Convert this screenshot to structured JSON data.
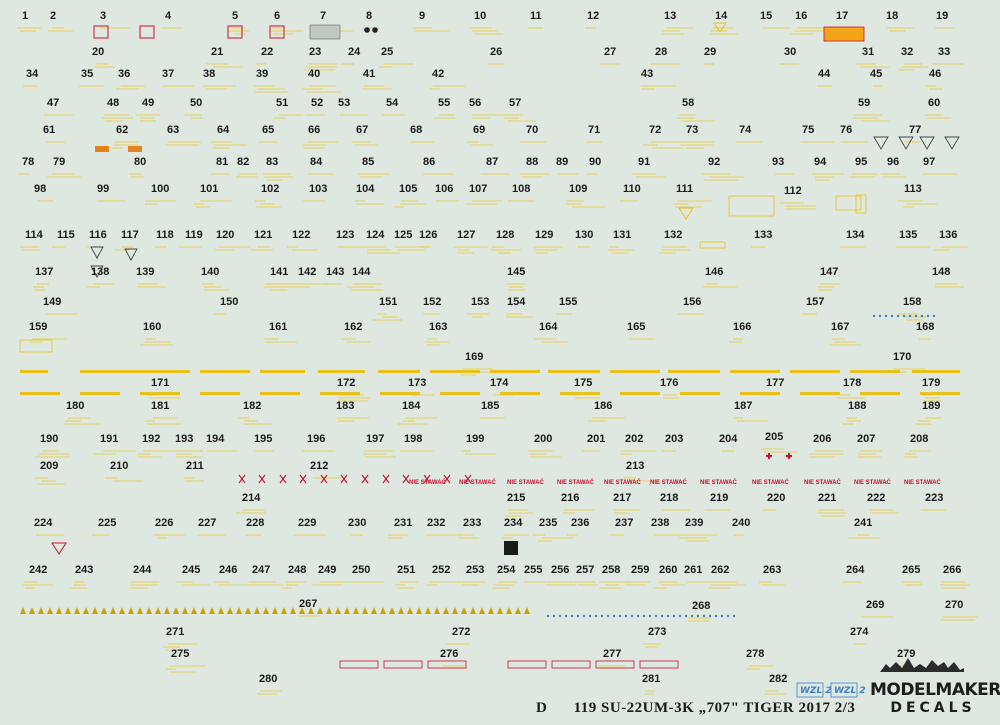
{
  "sheet": {
    "letter": "D",
    "title": "119 SU-22UM-3K „707\" TIGER 2017 2/3",
    "brand_line1": "MODELMAKER",
    "brand_line2": "DECALS",
    "badge_a": "WZL 2",
    "badge_b": "WZL 2",
    "red_stencil_text": "NIE STAWAĆ",
    "colors": {
      "background": "#dfe8e0",
      "yellow": "#e8c21a",
      "red": "#c8102e",
      "number_text": "#1a1a1a"
    }
  },
  "labels": [
    {
      "t": "1"
    },
    {
      "t": "2"
    },
    {
      "t": "3"
    },
    {
      "t": "4"
    },
    {
      "t": "5"
    },
    {
      "t": "6"
    },
    {
      "t": "7"
    },
    {
      "t": "8"
    },
    {
      "t": "9"
    },
    {
      "t": "10"
    },
    {
      "t": "11"
    },
    {
      "t": "12"
    },
    {
      "t": "13"
    },
    {
      "t": "14"
    },
    {
      "t": "15"
    },
    {
      "t": "16"
    },
    {
      "t": "17"
    },
    {
      "t": "18"
    },
    {
      "t": "19"
    },
    {
      "t": "20"
    },
    {
      "t": "21"
    },
    {
      "t": "22"
    },
    {
      "t": "23"
    },
    {
      "t": "24"
    },
    {
      "t": "25"
    },
    {
      "t": "26"
    },
    {
      "t": "27"
    },
    {
      "t": "28"
    },
    {
      "t": "29"
    },
    {
      "t": "30"
    },
    {
      "t": "31"
    },
    {
      "t": "32"
    },
    {
      "t": "33"
    },
    {
      "t": "34"
    },
    {
      "t": "35"
    },
    {
      "t": "36"
    },
    {
      "t": "37"
    },
    {
      "t": "38"
    },
    {
      "t": "39"
    },
    {
      "t": "40"
    },
    {
      "t": "41"
    },
    {
      "t": "42"
    },
    {
      "t": "43"
    },
    {
      "t": "44"
    },
    {
      "t": "45"
    },
    {
      "t": "46"
    },
    {
      "t": "47"
    },
    {
      "t": "48"
    },
    {
      "t": "49"
    },
    {
      "t": "50"
    },
    {
      "t": "51"
    },
    {
      "t": "52"
    },
    {
      "t": "53"
    },
    {
      "t": "54"
    },
    {
      "t": "55"
    },
    {
      "t": "56"
    },
    {
      "t": "57"
    },
    {
      "t": "58"
    },
    {
      "t": "59"
    },
    {
      "t": "60"
    },
    {
      "t": "61"
    },
    {
      "t": "62"
    },
    {
      "t": "63"
    },
    {
      "t": "64"
    },
    {
      "t": "65"
    },
    {
      "t": "66"
    },
    {
      "t": "67"
    },
    {
      "t": "68"
    },
    {
      "t": "69"
    },
    {
      "t": "70"
    },
    {
      "t": "71"
    },
    {
      "t": "72"
    },
    {
      "t": "73"
    },
    {
      "t": "74"
    },
    {
      "t": "75"
    },
    {
      "t": "76"
    },
    {
      "t": "77"
    },
    {
      "t": "78"
    },
    {
      "t": "79"
    },
    {
      "t": "80"
    },
    {
      "t": "81"
    },
    {
      "t": "82"
    },
    {
      "t": "83"
    },
    {
      "t": "84"
    },
    {
      "t": "85"
    },
    {
      "t": "86"
    },
    {
      "t": "87"
    },
    {
      "t": "88"
    },
    {
      "t": "89"
    },
    {
      "t": "90"
    },
    {
      "t": "91"
    },
    {
      "t": "92"
    },
    {
      "t": "93"
    },
    {
      "t": "94"
    },
    {
      "t": "95"
    },
    {
      "t": "96"
    },
    {
      "t": "97"
    },
    {
      "t": "98"
    },
    {
      "t": "99"
    },
    {
      "t": "100"
    },
    {
      "t": "101"
    },
    {
      "t": "102"
    },
    {
      "t": "103"
    },
    {
      "t": "104"
    },
    {
      "t": "105"
    },
    {
      "t": "106"
    },
    {
      "t": "107"
    },
    {
      "t": "108"
    },
    {
      "t": "109"
    },
    {
      "t": "110"
    },
    {
      "t": "111"
    },
    {
      "t": "112"
    },
    {
      "t": "113"
    },
    {
      "t": "114"
    },
    {
      "t": "115"
    },
    {
      "t": "116"
    },
    {
      "t": "117"
    },
    {
      "t": "118"
    },
    {
      "t": "119"
    },
    {
      "t": "120"
    },
    {
      "t": "121"
    },
    {
      "t": "122"
    },
    {
      "t": "123"
    },
    {
      "t": "124"
    },
    {
      "t": "125"
    },
    {
      "t": "126"
    },
    {
      "t": "127"
    },
    {
      "t": "128"
    },
    {
      "t": "129"
    },
    {
      "t": "130"
    },
    {
      "t": "131"
    },
    {
      "t": "132"
    },
    {
      "t": "133"
    },
    {
      "t": "134"
    },
    {
      "t": "135"
    },
    {
      "t": "136"
    },
    {
      "t": "137"
    },
    {
      "t": "138"
    },
    {
      "t": "139"
    },
    {
      "t": "140"
    },
    {
      "t": "141"
    },
    {
      "t": "142"
    },
    {
      "t": "143"
    },
    {
      "t": "144"
    },
    {
      "t": "145"
    },
    {
      "t": "146"
    },
    {
      "t": "147"
    },
    {
      "t": "148"
    },
    {
      "t": "149"
    },
    {
      "t": "150"
    },
    {
      "t": "151"
    },
    {
      "t": "152"
    },
    {
      "t": "153"
    },
    {
      "t": "154"
    },
    {
      "t": "155"
    },
    {
      "t": "156"
    },
    {
      "t": "157"
    },
    {
      "t": "158"
    },
    {
      "t": "159"
    },
    {
      "t": "160"
    },
    {
      "t": "161"
    },
    {
      "t": "162"
    },
    {
      "t": "163"
    },
    {
      "t": "164"
    },
    {
      "t": "165"
    },
    {
      "t": "166"
    },
    {
      "t": "167"
    },
    {
      "t": "168"
    },
    {
      "t": "169"
    },
    {
      "t": "170"
    },
    {
      "t": "171"
    },
    {
      "t": "172"
    },
    {
      "t": "173"
    },
    {
      "t": "174"
    },
    {
      "t": "175"
    },
    {
      "t": "176"
    },
    {
      "t": "177"
    },
    {
      "t": "178"
    },
    {
      "t": "179"
    },
    {
      "t": "180"
    },
    {
      "t": "181"
    },
    {
      "t": "182"
    },
    {
      "t": "183"
    },
    {
      "t": "184"
    },
    {
      "t": "185"
    },
    {
      "t": "186"
    },
    {
      "t": "187"
    },
    {
      "t": "188"
    },
    {
      "t": "189"
    },
    {
      "t": "190"
    },
    {
      "t": "191"
    },
    {
      "t": "192"
    },
    {
      "t": "193"
    },
    {
      "t": "194"
    },
    {
      "t": "195"
    },
    {
      "t": "196"
    },
    {
      "t": "197"
    },
    {
      "t": "198"
    },
    {
      "t": "199"
    },
    {
      "t": "200"
    },
    {
      "t": "201"
    },
    {
      "t": "202"
    },
    {
      "t": "203"
    },
    {
      "t": "204"
    },
    {
      "t": "205"
    },
    {
      "t": "206"
    },
    {
      "t": "207"
    },
    {
      "t": "208"
    },
    {
      "t": "209"
    },
    {
      "t": "210"
    },
    {
      "t": "211"
    },
    {
      "t": "212"
    },
    {
      "t": "213"
    },
    {
      "t": "214"
    },
    {
      "t": "215"
    },
    {
      "t": "216"
    },
    {
      "t": "217"
    },
    {
      "t": "218"
    },
    {
      "t": "219"
    },
    {
      "t": "220"
    },
    {
      "t": "221"
    },
    {
      "t": "222"
    },
    {
      "t": "223"
    },
    {
      "t": "224"
    },
    {
      "t": "225"
    },
    {
      "t": "226"
    },
    {
      "t": "227"
    },
    {
      "t": "228"
    },
    {
      "t": "229"
    },
    {
      "t": "230"
    },
    {
      "t": "231"
    },
    {
      "t": "232"
    },
    {
      "t": "233"
    },
    {
      "t": "234"
    },
    {
      "t": "235"
    },
    {
      "t": "236"
    },
    {
      "t": "237"
    },
    {
      "t": "238"
    },
    {
      "t": "239"
    },
    {
      "t": "240"
    },
    {
      "t": "241"
    },
    {
      "t": "242"
    },
    {
      "t": "243"
    },
    {
      "t": "244"
    },
    {
      "t": "245"
    },
    {
      "t": "246"
    },
    {
      "t": "247"
    },
    {
      "t": "248"
    },
    {
      "t": "249"
    },
    {
      "t": "250"
    },
    {
      "t": "251"
    },
    {
      "t": "252"
    },
    {
      "t": "253"
    },
    {
      "t": "254"
    },
    {
      "t": "255"
    },
    {
      "t": "256"
    },
    {
      "t": "257"
    },
    {
      "t": "258"
    },
    {
      "t": "259"
    },
    {
      "t": "260"
    },
    {
      "t": "261"
    },
    {
      "t": "262"
    },
    {
      "t": "263"
    },
    {
      "t": "264"
    },
    {
      "t": "265"
    },
    {
      "t": "266"
    },
    {
      "t": "267"
    },
    {
      "t": "268"
    },
    {
      "t": "269"
    },
    {
      "t": "270"
    },
    {
      "t": "271"
    },
    {
      "t": "272"
    },
    {
      "t": "273"
    },
    {
      "t": "274"
    },
    {
      "t": "275"
    },
    {
      "t": "276"
    },
    {
      "t": "277"
    },
    {
      "t": "278"
    },
    {
      "t": "279"
    },
    {
      "t": "280"
    },
    {
      "t": "281"
    },
    {
      "t": "282"
    }
  ]
}
